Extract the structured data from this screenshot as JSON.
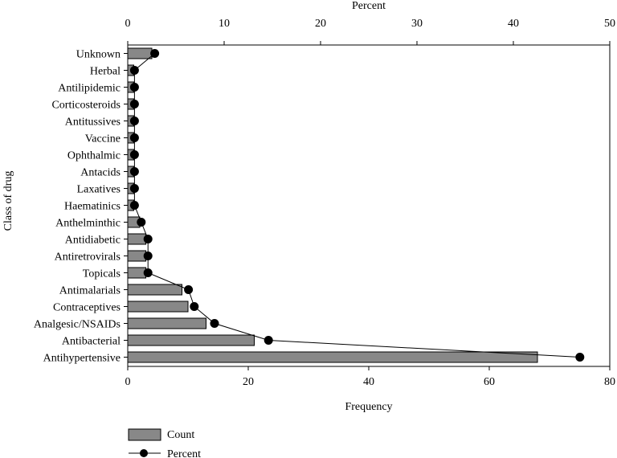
{
  "chart_data": {
    "type": "bar",
    "orientation": "horizontal",
    "ylabel": "Class of drug",
    "xlabel_bottom": "Frequency",
    "xlabel_top": "Percent",
    "bottom_axis": {
      "min": 0,
      "max": 80,
      "ticks": [
        0,
        20,
        40,
        60,
        80
      ]
    },
    "top_axis": {
      "min": 0,
      "max": 50,
      "ticks": [
        0,
        10,
        20,
        30,
        40,
        50
      ]
    },
    "categories": [
      "Unknown",
      "Herbal",
      "Antilipidemic",
      "Corticosteroids",
      "Antitussives",
      "Vaccine",
      "Ophthalmic",
      "Antacids",
      "Laxatives",
      "Haematinics",
      "Anthelminthic",
      "Antidiabetic",
      "Antiretrovirals",
      "Topicals",
      "Antimalarials",
      "Contraceptives",
      "Analgesic/NSAIDs",
      "Antibacterial",
      "Antihypertensive"
    ],
    "series": [
      {
        "name": "Count",
        "kind": "bar",
        "axis": "bottom",
        "values": [
          4,
          1,
          1,
          1,
          1,
          1,
          1,
          1,
          1,
          1,
          2,
          3,
          3,
          3,
          9,
          10,
          13,
          21,
          68
        ]
      },
      {
        "name": "Percent",
        "kind": "line-marker",
        "axis": "top",
        "values": [
          2.8,
          0.7,
          0.7,
          0.7,
          0.7,
          0.7,
          0.7,
          0.7,
          0.7,
          0.7,
          1.4,
          2.1,
          2.1,
          2.1,
          6.3,
          6.9,
          9.0,
          14.6,
          46.9
        ]
      }
    ],
    "colors": {
      "bar_fill": "#888888",
      "line": "#000000",
      "marker": "#000000"
    },
    "legend": {
      "placement": "bottom-left"
    },
    "grid": false
  }
}
